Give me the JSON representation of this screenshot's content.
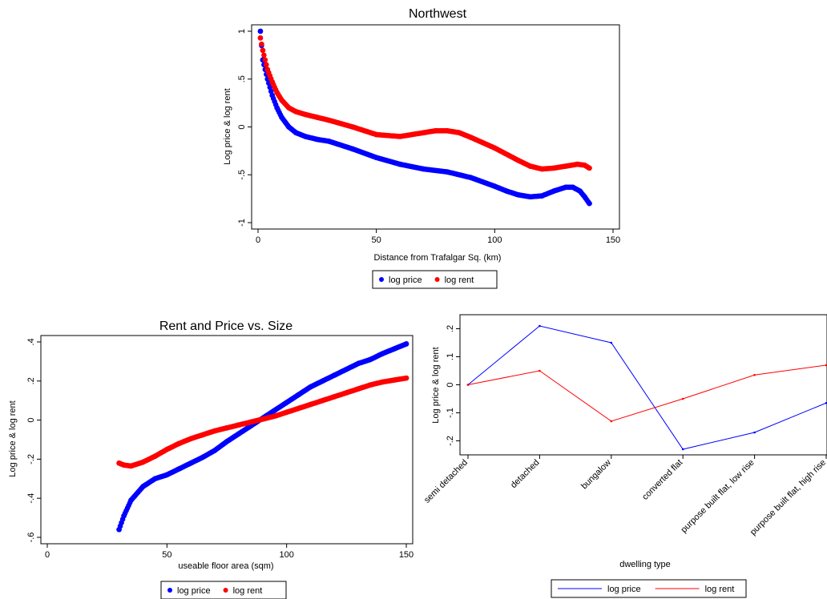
{
  "colors": {
    "price": "#0000ff",
    "rent": "#ff0000"
  },
  "chart_data": [
    {
      "type": "scatter",
      "title": "Northwest",
      "xlabel": "Distance from Trafalgar Sq. (km)",
      "ylabel": "Log price & log rent",
      "xlim": [
        0,
        150
      ],
      "ylim": [
        -1,
        1
      ],
      "xticks": [
        0,
        50,
        100,
        150
      ],
      "xtick_labels": [
        "0",
        "50",
        "100",
        "150"
      ],
      "yticks": [
        -1,
        -0.5,
        0,
        0.5,
        1
      ],
      "ytick_labels": [
        "-1",
        "-.5",
        "0",
        ".5",
        "1"
      ],
      "legend_position": "bottom",
      "series": [
        {
          "name": "log price",
          "marker": "dot",
          "x": [
            1,
            2,
            4,
            6,
            8,
            10,
            13,
            16,
            20,
            25,
            30,
            40,
            50,
            60,
            70,
            80,
            90,
            100,
            105,
            110,
            115,
            120,
            125,
            130,
            133,
            136,
            138,
            140
          ],
          "y": [
            1.0,
            0.7,
            0.5,
            0.33,
            0.2,
            0.1,
            0.0,
            -0.06,
            -0.1,
            -0.13,
            -0.15,
            -0.23,
            -0.32,
            -0.39,
            -0.44,
            -0.47,
            -0.53,
            -0.62,
            -0.67,
            -0.71,
            -0.73,
            -0.72,
            -0.67,
            -0.63,
            -0.63,
            -0.67,
            -0.73,
            -0.8
          ]
        },
        {
          "name": "log rent",
          "marker": "dot",
          "x": [
            1,
            2,
            4,
            6,
            8,
            10,
            13,
            16,
            20,
            25,
            30,
            40,
            50,
            60,
            70,
            75,
            80,
            85,
            90,
            100,
            110,
            115,
            120,
            125,
            130,
            135,
            138,
            140
          ],
          "y": [
            0.93,
            0.8,
            0.6,
            0.47,
            0.36,
            0.28,
            0.2,
            0.16,
            0.13,
            0.1,
            0.07,
            0.0,
            -0.08,
            -0.1,
            -0.06,
            -0.04,
            -0.04,
            -0.06,
            -0.11,
            -0.22,
            -0.35,
            -0.41,
            -0.44,
            -0.43,
            -0.41,
            -0.39,
            -0.4,
            -0.43
          ]
        }
      ]
    },
    {
      "type": "scatter",
      "title": "Rent and Price vs. Size",
      "xlabel": "useable floor area (sqm)",
      "ylabel": "Log price & log rent",
      "xlim": [
        0,
        150
      ],
      "ylim": [
        -0.6,
        0.4
      ],
      "xticks": [
        0,
        50,
        100,
        150
      ],
      "xtick_labels": [
        "0",
        "50",
        "100",
        "150"
      ],
      "yticks": [
        -0.6,
        -0.4,
        -0.2,
        0,
        0.2,
        0.4
      ],
      "ytick_labels": [
        "-.6",
        "-.4",
        "-.2",
        "0",
        ".2",
        ".4"
      ],
      "legend_position": "bottom",
      "series": [
        {
          "name": "log price",
          "marker": "dot",
          "x": [
            30,
            32,
            35,
            40,
            45,
            50,
            55,
            60,
            65,
            70,
            75,
            80,
            85,
            90,
            95,
            100,
            105,
            110,
            115,
            120,
            125,
            130,
            135,
            140,
            145,
            150
          ],
          "y": [
            -0.56,
            -0.49,
            -0.41,
            -0.34,
            -0.3,
            -0.28,
            -0.25,
            -0.22,
            -0.19,
            -0.155,
            -0.11,
            -0.07,
            -0.03,
            0.01,
            0.05,
            0.09,
            0.13,
            0.17,
            0.2,
            0.23,
            0.26,
            0.29,
            0.31,
            0.34,
            0.365,
            0.39
          ]
        },
        {
          "name": "log rent",
          "marker": "dot",
          "x": [
            30,
            32,
            35,
            40,
            45,
            50,
            55,
            60,
            65,
            70,
            75,
            80,
            85,
            90,
            95,
            100,
            105,
            110,
            115,
            120,
            125,
            130,
            135,
            140,
            145,
            150
          ],
          "y": [
            -0.22,
            -0.23,
            -0.235,
            -0.215,
            -0.185,
            -0.15,
            -0.12,
            -0.095,
            -0.075,
            -0.055,
            -0.04,
            -0.025,
            -0.01,
            0.005,
            0.02,
            0.04,
            0.06,
            0.08,
            0.1,
            0.12,
            0.14,
            0.16,
            0.18,
            0.195,
            0.205,
            0.215
          ]
        }
      ]
    },
    {
      "type": "line",
      "xlabel": "dwelling type",
      "ylabel": "Log price & log rent",
      "categories": [
        "semi detached",
        "detached",
        "bungalow",
        "converted flat",
        "purpose built flat, low rise",
        "purpose built flat, high rise"
      ],
      "ylim": [
        -0.25,
        0.25
      ],
      "yticks": [
        -0.2,
        -0.1,
        0,
        0.1,
        0.2
      ],
      "ytick_labels": [
        "-.2",
        "-.1",
        "0",
        ".1",
        ".2"
      ],
      "legend_position": "bottom",
      "series": [
        {
          "name": "log price",
          "values": [
            0,
            0.21,
            0.15,
            -0.23,
            -0.17,
            -0.065
          ]
        },
        {
          "name": "log rent",
          "values": [
            0,
            0.05,
            -0.13,
            -0.05,
            0.035,
            0.07
          ]
        }
      ]
    }
  ]
}
